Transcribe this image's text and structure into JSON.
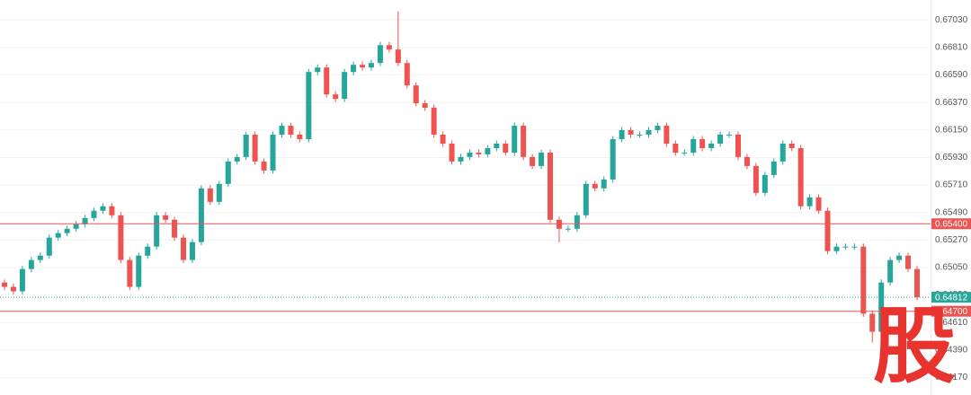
{
  "chart_data": {
    "type": "candlestick",
    "open": [
      0.6493,
      0.64895,
      0.64859,
      0.65038,
      0.6511,
      0.65145,
      0.65289,
      0.65325,
      0.6536,
      0.65396,
      0.65446,
      0.65504,
      0.6554,
      0.65468,
      0.6511,
      0.64895,
      0.65145,
      0.65217,
      0.65468,
      0.65432,
      0.65289,
      0.6511,
      0.65253,
      0.65683,
      0.65575,
      0.65719,
      0.65898,
      0.65934,
      0.66113,
      0.65898,
      0.65826,
      0.66113,
      0.66184,
      0.66113,
      0.66077,
      0.66614,
      0.6665,
      0.66435,
      0.66399,
      0.66614,
      0.66672,
      0.6665,
      0.66686,
      0.66829,
      0.66794,
      0.66686,
      0.66507,
      0.66364,
      0.66328,
      0.66113,
      0.66041,
      0.65898,
      0.65934,
      0.65969,
      0.65955,
      0.66005,
      0.66041,
      0.65969,
      0.66184,
      0.65934,
      0.65862,
      0.65969,
      0.65432,
      0.6536,
      0.6536,
      0.65468,
      0.65719,
      0.65683,
      0.65754,
      0.66077,
      0.66149,
      0.66113,
      0.66113,
      0.66149,
      0.66184,
      0.66041,
      0.65969,
      0.65969,
      0.66077,
      0.66005,
      0.66041,
      0.66113,
      0.66113,
      0.65934,
      0.65862,
      0.65647,
      0.6579,
      0.65898,
      0.66041,
      0.66005,
      0.6554,
      0.65611,
      0.65504,
      0.65181,
      0.65217,
      0.65217,
      0.65217,
      0.6468,
      0.64536,
      0.6493,
      0.6511,
      0.65145,
      0.65038
    ],
    "high": [
      0.64955,
      0.6492,
      0.65063,
      0.65135,
      0.6517,
      0.65314,
      0.6535,
      0.65385,
      0.65421,
      0.65471,
      0.65529,
      0.65565,
      0.65565,
      0.65493,
      0.65135,
      0.6517,
      0.65242,
      0.65493,
      0.65493,
      0.65457,
      0.65314,
      0.65278,
      0.65708,
      0.65708,
      0.65744,
      0.65923,
      0.65959,
      0.66138,
      0.66138,
      0.65923,
      0.66138,
      0.66209,
      0.66209,
      0.66138,
      0.66639,
      0.66675,
      0.66675,
      0.6646,
      0.66639,
      0.66697,
      0.66697,
      0.66711,
      0.66854,
      0.66854,
      0.671,
      0.66711,
      0.66532,
      0.66389,
      0.66353,
      0.66138,
      0.66066,
      0.65959,
      0.65994,
      0.65994,
      0.6603,
      0.66066,
      0.66066,
      0.66209,
      0.66209,
      0.65959,
      0.65994,
      0.65994,
      0.65457,
      0.65385,
      0.65493,
      0.65744,
      0.65744,
      0.65779,
      0.66102,
      0.66174,
      0.66174,
      0.66138,
      0.66174,
      0.66209,
      0.66209,
      0.66066,
      0.65994,
      0.66102,
      0.66102,
      0.66066,
      0.66138,
      0.66138,
      0.66138,
      0.65959,
      0.65887,
      0.65815,
      0.65923,
      0.66066,
      0.66066,
      0.6603,
      0.65636,
      0.65636,
      0.65529,
      0.65242,
      0.65242,
      0.65242,
      0.65242,
      0.64705,
      0.64955,
      0.65135,
      0.6517,
      0.6517,
      0.65063
    ],
    "low": [
      0.6487,
      0.64834,
      0.64834,
      0.65013,
      0.65085,
      0.6512,
      0.65264,
      0.653,
      0.65335,
      0.65371,
      0.65421,
      0.65479,
      0.65443,
      0.65085,
      0.6487,
      0.6487,
      0.6512,
      0.65192,
      0.65407,
      0.65264,
      0.65085,
      0.65085,
      0.65228,
      0.6555,
      0.6555,
      0.65694,
      0.65873,
      0.65909,
      0.65873,
      0.65801,
      0.65801,
      0.66088,
      0.66088,
      0.66052,
      0.66052,
      0.66589,
      0.6641,
      0.66374,
      0.66374,
      0.66589,
      0.66625,
      0.66625,
      0.66661,
      0.66769,
      0.66661,
      0.66482,
      0.66339,
      0.66303,
      0.66088,
      0.66016,
      0.65873,
      0.65873,
      0.65909,
      0.6593,
      0.6593,
      0.6598,
      0.65944,
      0.65944,
      0.65909,
      0.65837,
      0.65837,
      0.65407,
      0.6525,
      0.65335,
      0.65335,
      0.65443,
      0.65658,
      0.65658,
      0.65729,
      0.66052,
      0.66088,
      0.66088,
      0.66088,
      0.66124,
      0.66016,
      0.65944,
      0.65944,
      0.65944,
      0.6598,
      0.6598,
      0.66016,
      0.66088,
      0.65909,
      0.65837,
      0.65622,
      0.65622,
      0.65765,
      0.65873,
      0.6598,
      0.65515,
      0.65515,
      0.65479,
      0.65156,
      0.65156,
      0.65192,
      0.65192,
      0.64655,
      0.6445,
      0.64511,
      0.64905,
      0.65085,
      0.65013,
      0.64787
    ],
    "close": [
      0.64895,
      0.64859,
      0.65038,
      0.6511,
      0.65145,
      0.65289,
      0.65325,
      0.6536,
      0.65396,
      0.65446,
      0.65504,
      0.6554,
      0.65468,
      0.6511,
      0.64895,
      0.65145,
      0.65217,
      0.65468,
      0.65432,
      0.65289,
      0.6511,
      0.65253,
      0.65683,
      0.65575,
      0.65719,
      0.65898,
      0.65934,
      0.66113,
      0.65898,
      0.65826,
      0.66113,
      0.66184,
      0.66113,
      0.66077,
      0.66614,
      0.6665,
      0.66435,
      0.66399,
      0.66614,
      0.66672,
      0.6665,
      0.66686,
      0.66829,
      0.66794,
      0.66686,
      0.66507,
      0.66364,
      0.66328,
      0.66113,
      0.66041,
      0.65898,
      0.65934,
      0.65969,
      0.65955,
      0.66005,
      0.66041,
      0.65969,
      0.66184,
      0.65934,
      0.65862,
      0.65969,
      0.65432,
      0.6536,
      0.6536,
      0.65468,
      0.65719,
      0.65683,
      0.65754,
      0.66077,
      0.66149,
      0.66113,
      0.66113,
      0.66149,
      0.66184,
      0.66041,
      0.65969,
      0.65969,
      0.66077,
      0.66005,
      0.66041,
      0.66113,
      0.66113,
      0.65934,
      0.65862,
      0.65647,
      0.6579,
      0.65898,
      0.66041,
      0.66005,
      0.6554,
      0.65611,
      0.65504,
      0.65181,
      0.65217,
      0.65217,
      0.65217,
      0.6468,
      0.64536,
      0.6493,
      0.6511,
      0.65145,
      0.65038,
      0.64812
    ],
    "up_color": "#26a69a",
    "down_color": "#ef5350",
    "ylim": [
      0.6403,
      0.6719
    ],
    "yticks": [
      {
        "value": 0.6703,
        "label": "0.67030"
      },
      {
        "value": 0.6681,
        "label": "0.66810"
      },
      {
        "value": 0.6659,
        "label": "0.66590"
      },
      {
        "value": 0.6637,
        "label": "0.66370"
      },
      {
        "value": 0.6615,
        "label": "0.66150"
      },
      {
        "value": 0.6593,
        "label": "0.65930"
      },
      {
        "value": 0.6571,
        "label": "0.65710"
      },
      {
        "value": 0.6549,
        "label": "0.65490"
      },
      {
        "value": 0.6527,
        "label": "0.65270"
      },
      {
        "value": 0.6505,
        "label": "0.65050"
      },
      {
        "value": 0.6483,
        "label": "0.64830"
      },
      {
        "value": 0.6461,
        "label": "0.64610"
      },
      {
        "value": 0.6439,
        "label": "0.64390"
      },
      {
        "value": 0.6417,
        "label": "0.64170"
      }
    ],
    "grid": true,
    "price_lines": [
      {
        "value": 0.654,
        "label": "0.65400",
        "color": "#ef5350",
        "style": "solid"
      },
      {
        "value": 0.64812,
        "label": "0.64812",
        "color": "#26a69a",
        "style": "dotted"
      },
      {
        "value": 0.647,
        "label": "0.64700",
        "color": "#ef5350",
        "style": "solid"
      }
    ],
    "watermark": "股"
  }
}
